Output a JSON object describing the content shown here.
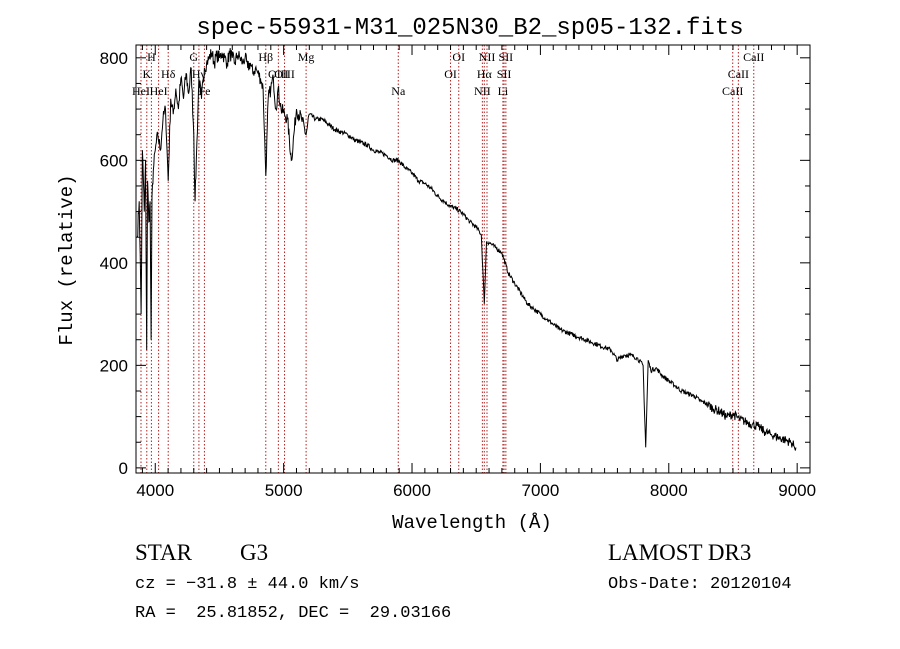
{
  "chart_data": {
    "type": "line",
    "title": "spec-55931-M31_025N30_B2_sp05-132.fits",
    "xlabel": "Wavelength (Å)",
    "ylabel": "Flux (relative)",
    "xlim": [
      3850,
      9100
    ],
    "ylim": [
      -10,
      825
    ],
    "xticks": [
      4000,
      5000,
      6000,
      7000,
      8000,
      9000
    ],
    "yticks": [
      0,
      200,
      400,
      600,
      800
    ],
    "grid": false,
    "series": [
      {
        "name": "flux",
        "x": [
          3860,
          3875,
          3890,
          3900,
          3915,
          3925,
          3933,
          3940,
          3950,
          3960,
          3968,
          3975,
          3985,
          4000,
          4020,
          4040,
          4060,
          4080,
          4101,
          4120,
          4140,
          4160,
          4180,
          4200,
          4220,
          4240,
          4260,
          4280,
          4300,
          4310,
          4320,
          4340,
          4360,
          4383,
          4400,
          4420,
          4440,
          4460,
          4480,
          4500,
          4520,
          4540,
          4560,
          4580,
          4600,
          4620,
          4640,
          4660,
          4680,
          4700,
          4720,
          4740,
          4760,
          4780,
          4800,
          4820,
          4840,
          4861,
          4880,
          4900,
          4920,
          4940,
          4957,
          4980,
          5007,
          5030,
          5060,
          5100,
          5140,
          5175,
          5200,
          5250,
          5300,
          5350,
          5400,
          5450,
          5500,
          5550,
          5600,
          5650,
          5700,
          5750,
          5800,
          5850,
          5893,
          5950,
          6000,
          6050,
          6100,
          6150,
          6200,
          6250,
          6300,
          6350,
          6400,
          6450,
          6500,
          6540,
          6563,
          6580,
          6600,
          6650,
          6700,
          6750,
          6800,
          6850,
          6900,
          6950,
          7000,
          7050,
          7100,
          7150,
          7200,
          7250,
          7300,
          7350,
          7400,
          7450,
          7500,
          7550,
          7600,
          7650,
          7700,
          7750,
          7800,
          7820,
          7840,
          7860,
          7900,
          7950,
          8000,
          8050,
          8100,
          8150,
          8200,
          8250,
          8300,
          8350,
          8400,
          8450,
          8500,
          8550,
          8600,
          8650,
          8700,
          8750,
          8800,
          8850,
          8900,
          8950,
          8990
        ],
        "y": [
          450,
          520,
          300,
          620,
          500,
          600,
          230,
          560,
          480,
          520,
          250,
          530,
          580,
          620,
          650,
          620,
          680,
          700,
          560,
          720,
          690,
          740,
          700,
          760,
          720,
          770,
          730,
          780,
          650,
          520,
          600,
          760,
          720,
          780,
          790,
          800,
          810,
          790,
          805,
          800,
          810,
          800,
          790,
          810,
          800,
          790,
          805,
          800,
          790,
          800,
          780,
          790,
          770,
          780,
          770,
          760,
          740,
          570,
          720,
          740,
          760,
          700,
          740,
          700,
          690,
          680,
          600,
          700,
          680,
          650,
          690,
          680,
          680,
          670,
          660,
          655,
          650,
          640,
          635,
          630,
          620,
          615,
          610,
          600,
          600,
          585,
          575,
          560,
          555,
          545,
          530,
          520,
          510,
          505,
          495,
          480,
          470,
          455,
          320,
          440,
          440,
          430,
          420,
          380,
          360,
          340,
          320,
          310,
          300,
          290,
          280,
          270,
          265,
          260,
          255,
          250,
          245,
          240,
          235,
          230,
          210,
          220,
          220,
          215,
          200,
          40,
          210,
          190,
          195,
          180,
          170,
          160,
          150,
          145,
          140,
          130,
          125,
          115,
          110,
          100,
          105,
          95,
          90,
          85,
          80,
          70,
          65,
          60,
          55,
          50,
          40
        ]
      }
    ],
    "lines": [
      {
        "wl": 3889,
        "label": "HeI",
        "row": 3
      },
      {
        "wl": 3934,
        "label": "K",
        "row": 2
      },
      {
        "wl": 3970,
        "label": "H",
        "row": 1
      },
      {
        "wl": 4026,
        "label": "HeI",
        "row": 3
      },
      {
        "wl": 4101,
        "label": "Hδ",
        "row": 2
      },
      {
        "wl": 4300,
        "label": "G",
        "row": 1
      },
      {
        "wl": 4340,
        "label": "Hγ",
        "row": 2
      },
      {
        "wl": 4383,
        "label": "Fe",
        "row": 3
      },
      {
        "wl": 4861,
        "label": "Hβ",
        "row": 1
      },
      {
        "wl": 4959,
        "label": "OIII",
        "row": 2
      },
      {
        "wl": 5007,
        "label": "OIII",
        "row": 2
      },
      {
        "wl": 5175,
        "label": "Mg",
        "row": 1
      },
      {
        "wl": 5893,
        "label": "Na",
        "row": 3
      },
      {
        "wl": 6300,
        "label": "OI",
        "row": 2
      },
      {
        "wl": 6364,
        "label": "OI",
        "row": 1
      },
      {
        "wl": 6548,
        "label": "NII",
        "row": 3
      },
      {
        "wl": 6563,
        "label": "Hα",
        "row": 2
      },
      {
        "wl": 6584,
        "label": "NII",
        "row": 1
      },
      {
        "wl": 6708,
        "label": "Li",
        "row": 3
      },
      {
        "wl": 6717,
        "label": "SII",
        "row": 2
      },
      {
        "wl": 6731,
        "label": "SII",
        "row": 1
      },
      {
        "wl": 8498,
        "label": "CaII",
        "row": 3
      },
      {
        "wl": 8542,
        "label": "CaII",
        "row": 2
      },
      {
        "wl": 8662,
        "label": "CaII",
        "row": 1
      }
    ]
  },
  "info": {
    "object_class": "STAR",
    "subclass": "G3",
    "survey": "LAMOST DR3",
    "redshift_text": "cz = −31.8 ± 44.0 km/s",
    "obs_date_text": "Obs-Date: 20120104",
    "coords_text": "RA =  25.81852, DEC =  29.03166"
  }
}
